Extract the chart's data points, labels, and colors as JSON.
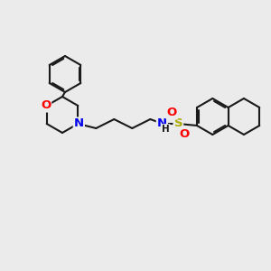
{
  "background_color": "#ebebeb",
  "bond_color": "#1a1a1a",
  "bond_width": 1.5,
  "atom_colors": {
    "O": "#ff0000",
    "N": "#0000ee",
    "S": "#aaaa00",
    "H": "#1a1a1a"
  },
  "font_size": 8.5,
  "figsize": [
    3.0,
    3.0
  ],
  "dpi": 100
}
